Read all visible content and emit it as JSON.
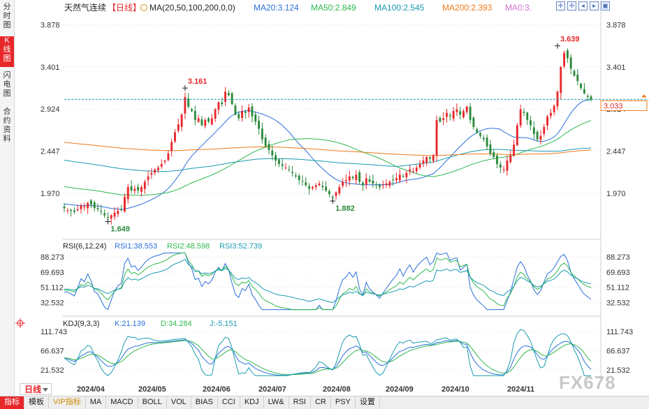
{
  "sidebar": [
    {
      "label": "分时图",
      "active": false
    },
    {
      "label": "K线图",
      "active": true
    },
    {
      "label": "闪电图",
      "active": false
    },
    {
      "label": "合约资料",
      "active": false
    }
  ],
  "header": {
    "symbol": "天然气连续",
    "period_tag": "【日线】",
    "ma_params": "MA(20,50,100,200,0,0)",
    "ma_values": [
      {
        "label": "MA20:3.124",
        "color": "#2a6fdb"
      },
      {
        "label": "MA50:2.849",
        "color": "#2db84d"
      },
      {
        "label": "MA100:2.545",
        "color": "#1a9bb0"
      },
      {
        "label": "MA200:2.393",
        "color": "#f07a1a"
      },
      {
        "label": "MA0:3.",
        "color": "#d070d0"
      }
    ],
    "window_icons": [
      "zoom-in-icon",
      "zoom-out-icon",
      "left-icon",
      "right-icon",
      "fullscreen-icon"
    ]
  },
  "period_button": "日线",
  "watermark": "FX678",
  "tabs": [
    {
      "label": "指标",
      "active": true
    },
    {
      "label": "模板"
    },
    {
      "label": "VIP指标",
      "vip": true
    },
    {
      "label": "MA"
    },
    {
      "label": "MACD"
    },
    {
      "label": "BOLL"
    },
    {
      "label": "VOL"
    },
    {
      "label": "BIAS"
    },
    {
      "label": "CCI"
    },
    {
      "label": "KDJ"
    },
    {
      "label": "LW&"
    },
    {
      "label": "RSI"
    },
    {
      "label": "CR"
    },
    {
      "label": "PSY"
    },
    {
      "label": "设置"
    }
  ],
  "colors": {
    "up": "#e8272b",
    "down": "#2a8a3a",
    "ma20": "#2a6fdb",
    "ma50": "#2db84d",
    "ma100": "#1a9bb0",
    "ma200": "#f07a1a",
    "current": "#1a9bb0"
  },
  "chart_data": {
    "type": "candlestick",
    "price_axis": {
      "ticks": [
        "3.878",
        "3.401",
        "2.924",
        "2.447",
        "1.970"
      ],
      "ylim": [
        1.55,
        4.0
      ]
    },
    "current_price": "3.033",
    "x_labels": [
      "2024/04",
      "2024/05",
      "2024/06",
      "2024/07",
      "2024/08",
      "2024/09",
      "2024/10",
      "2024/11"
    ],
    "annotations": [
      {
        "text": "3.161",
        "kind": "high",
        "index": 36
      },
      {
        "text": "1.649",
        "kind": "low",
        "index": 13
      },
      {
        "text": "1.882",
        "kind": "low",
        "index": 80
      },
      {
        "text": "3.639",
        "kind": "high",
        "index": 147
      }
    ],
    "candles_ohlc_closes": [
      1.8,
      1.78,
      1.77,
      1.76,
      1.79,
      1.83,
      1.82,
      1.86,
      1.84,
      1.8,
      1.79,
      1.76,
      1.72,
      1.69,
      1.72,
      1.75,
      1.77,
      1.78,
      1.93,
      2.04,
      2.0,
      2.02,
      2.0,
      2.04,
      2.1,
      2.16,
      2.2,
      2.24,
      2.26,
      2.3,
      2.34,
      2.42,
      2.55,
      2.66,
      2.75,
      2.86,
      3.06,
      2.95,
      2.9,
      2.8,
      2.82,
      2.74,
      2.8,
      2.78,
      2.82,
      2.92,
      3.0,
      2.98,
      3.12,
      3.08,
      2.98,
      2.86,
      2.82,
      2.9,
      2.88,
      2.94,
      2.84,
      2.78,
      2.7,
      2.58,
      2.5,
      2.46,
      2.4,
      2.34,
      2.3,
      2.28,
      2.26,
      2.24,
      2.2,
      2.16,
      2.12,
      2.1,
      2.06,
      2.02,
      2.04,
      2.06,
      2.08,
      2.04,
      2.0,
      1.96,
      1.92,
      1.98,
      2.04,
      2.1,
      2.12,
      2.16,
      2.14,
      2.18,
      2.1,
      2.06,
      2.14,
      2.1,
      2.08,
      2.06,
      2.04,
      2.06,
      2.08,
      2.1,
      2.12,
      2.14,
      2.18,
      2.16,
      2.2,
      2.24,
      2.22,
      2.26,
      2.3,
      2.34,
      2.38,
      2.36,
      2.4,
      2.8,
      2.78,
      2.82,
      2.88,
      2.84,
      2.9,
      2.92,
      2.86,
      2.9,
      2.95,
      2.8,
      2.72,
      2.66,
      2.62,
      2.58,
      2.5,
      2.42,
      2.38,
      2.3,
      2.26,
      2.24,
      2.34,
      2.4,
      2.52,
      2.74,
      2.92,
      2.88,
      2.8,
      2.74,
      2.64,
      2.58,
      2.62,
      2.72,
      2.84,
      2.88,
      2.96,
      3.12,
      3.4,
      3.56,
      3.5,
      3.38,
      3.3,
      3.24,
      3.16,
      3.1,
      3.06,
      3.03
    ],
    "rsi": {
      "title": "RSI(6,12,24)",
      "values": [
        {
          "label": "RSI1:38.553",
          "color": "#2a6fdb"
        },
        {
          "label": "RSI2:48.598",
          "color": "#2db84d"
        },
        {
          "label": "RSI3:52.739",
          "color": "#1a9bb0"
        }
      ],
      "ticks": [
        "88.273",
        "69.693",
        "51.112",
        "32.532"
      ]
    },
    "kdj": {
      "title": "KDJ(9,3,3)",
      "values": [
        {
          "label": "K:21.139",
          "color": "#2a6fdb"
        },
        {
          "label": "D:34.284",
          "color": "#2db84d"
        },
        {
          "label": "J:-5.151",
          "color": "#1a9bb0"
        }
      ],
      "ticks": [
        "111.743",
        "66.637",
        "21.532"
      ]
    }
  }
}
